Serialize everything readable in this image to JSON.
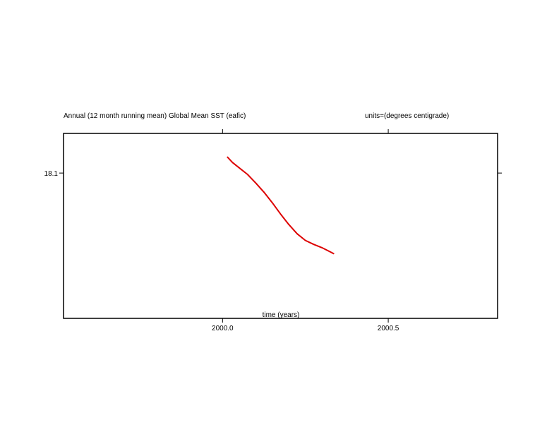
{
  "chart_data": {
    "type": "line",
    "title": "Annual (12 month running mean) Global Mean SST (eafic)",
    "units_label": "units=(degrees centigrade)",
    "xlabel": "time (years)",
    "ylabel": "",
    "xlim": [
      1999.52,
      2000.83
    ],
    "ylim": [
      18.078,
      18.106
    ],
    "x_ticks": [
      2000.0,
      2000.5
    ],
    "x_tick_labels": [
      "2000.0",
      "2000.5"
    ],
    "y_ticks": [
      18.1
    ],
    "y_tick_labels": [
      "18.1"
    ],
    "grid": false,
    "legend": "none",
    "series": [
      {
        "color": "#dd0000",
        "x": [
          2000.015,
          2000.03,
          2000.05,
          2000.075,
          2000.1,
          2000.125,
          2000.15,
          2000.175,
          2000.2,
          2000.225,
          2000.25,
          2000.275,
          2000.3,
          2000.32,
          2000.335
        ],
        "y": [
          18.1024,
          18.1016,
          18.1008,
          18.0998,
          18.0985,
          18.0971,
          18.0955,
          18.0938,
          18.0922,
          18.0908,
          18.0898,
          18.0892,
          18.0887,
          18.0882,
          18.0878
        ]
      }
    ]
  }
}
